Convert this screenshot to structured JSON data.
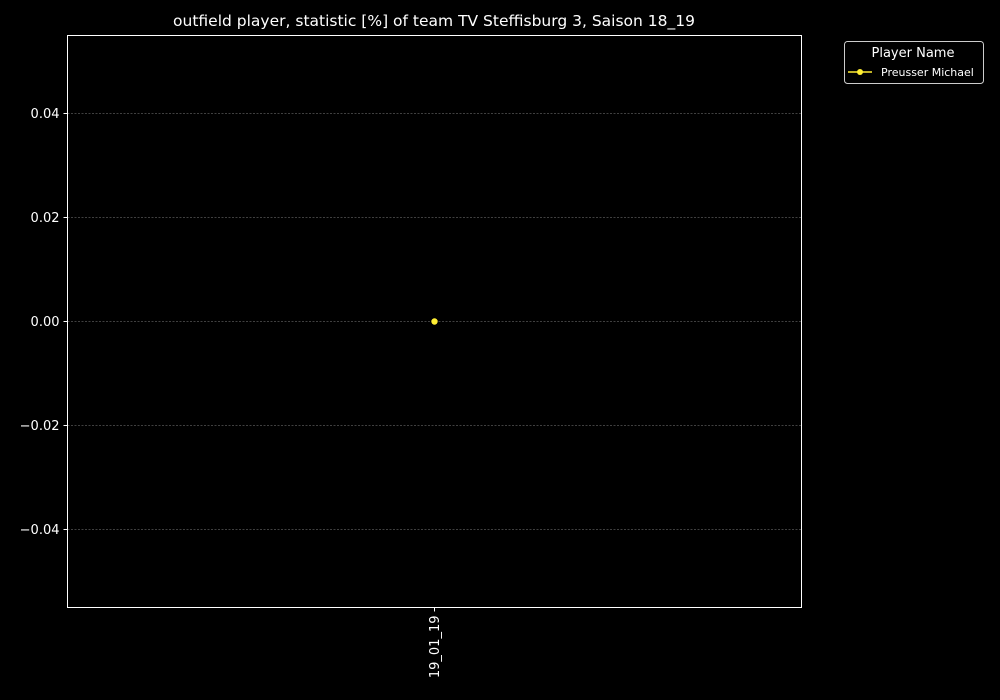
{
  "chart_data": {
    "type": "line",
    "title": "outfield player, statistic [%] of team TV Steffisburg 3, Saison 18_19",
    "xlabel": "",
    "ylabel": "",
    "categories": [
      "19_01_19"
    ],
    "series": [
      {
        "name": "Preusser Michael",
        "values": [
          0.0
        ],
        "color": "#ffee33"
      }
    ],
    "ylim": [
      -0.055,
      0.055
    ],
    "yticks": [
      -0.04,
      -0.02,
      0.0,
      0.02,
      0.04
    ],
    "ytick_labels": [
      "−0.04",
      "−0.02",
      "0.00",
      "0.02",
      "0.04"
    ],
    "grid": true,
    "grid_axis": "y",
    "legend": {
      "title": "Player Name",
      "placement": "outside-top-right"
    },
    "colors": {
      "background": "#000000",
      "axes": "#ffffff",
      "grid": "#808080"
    }
  }
}
